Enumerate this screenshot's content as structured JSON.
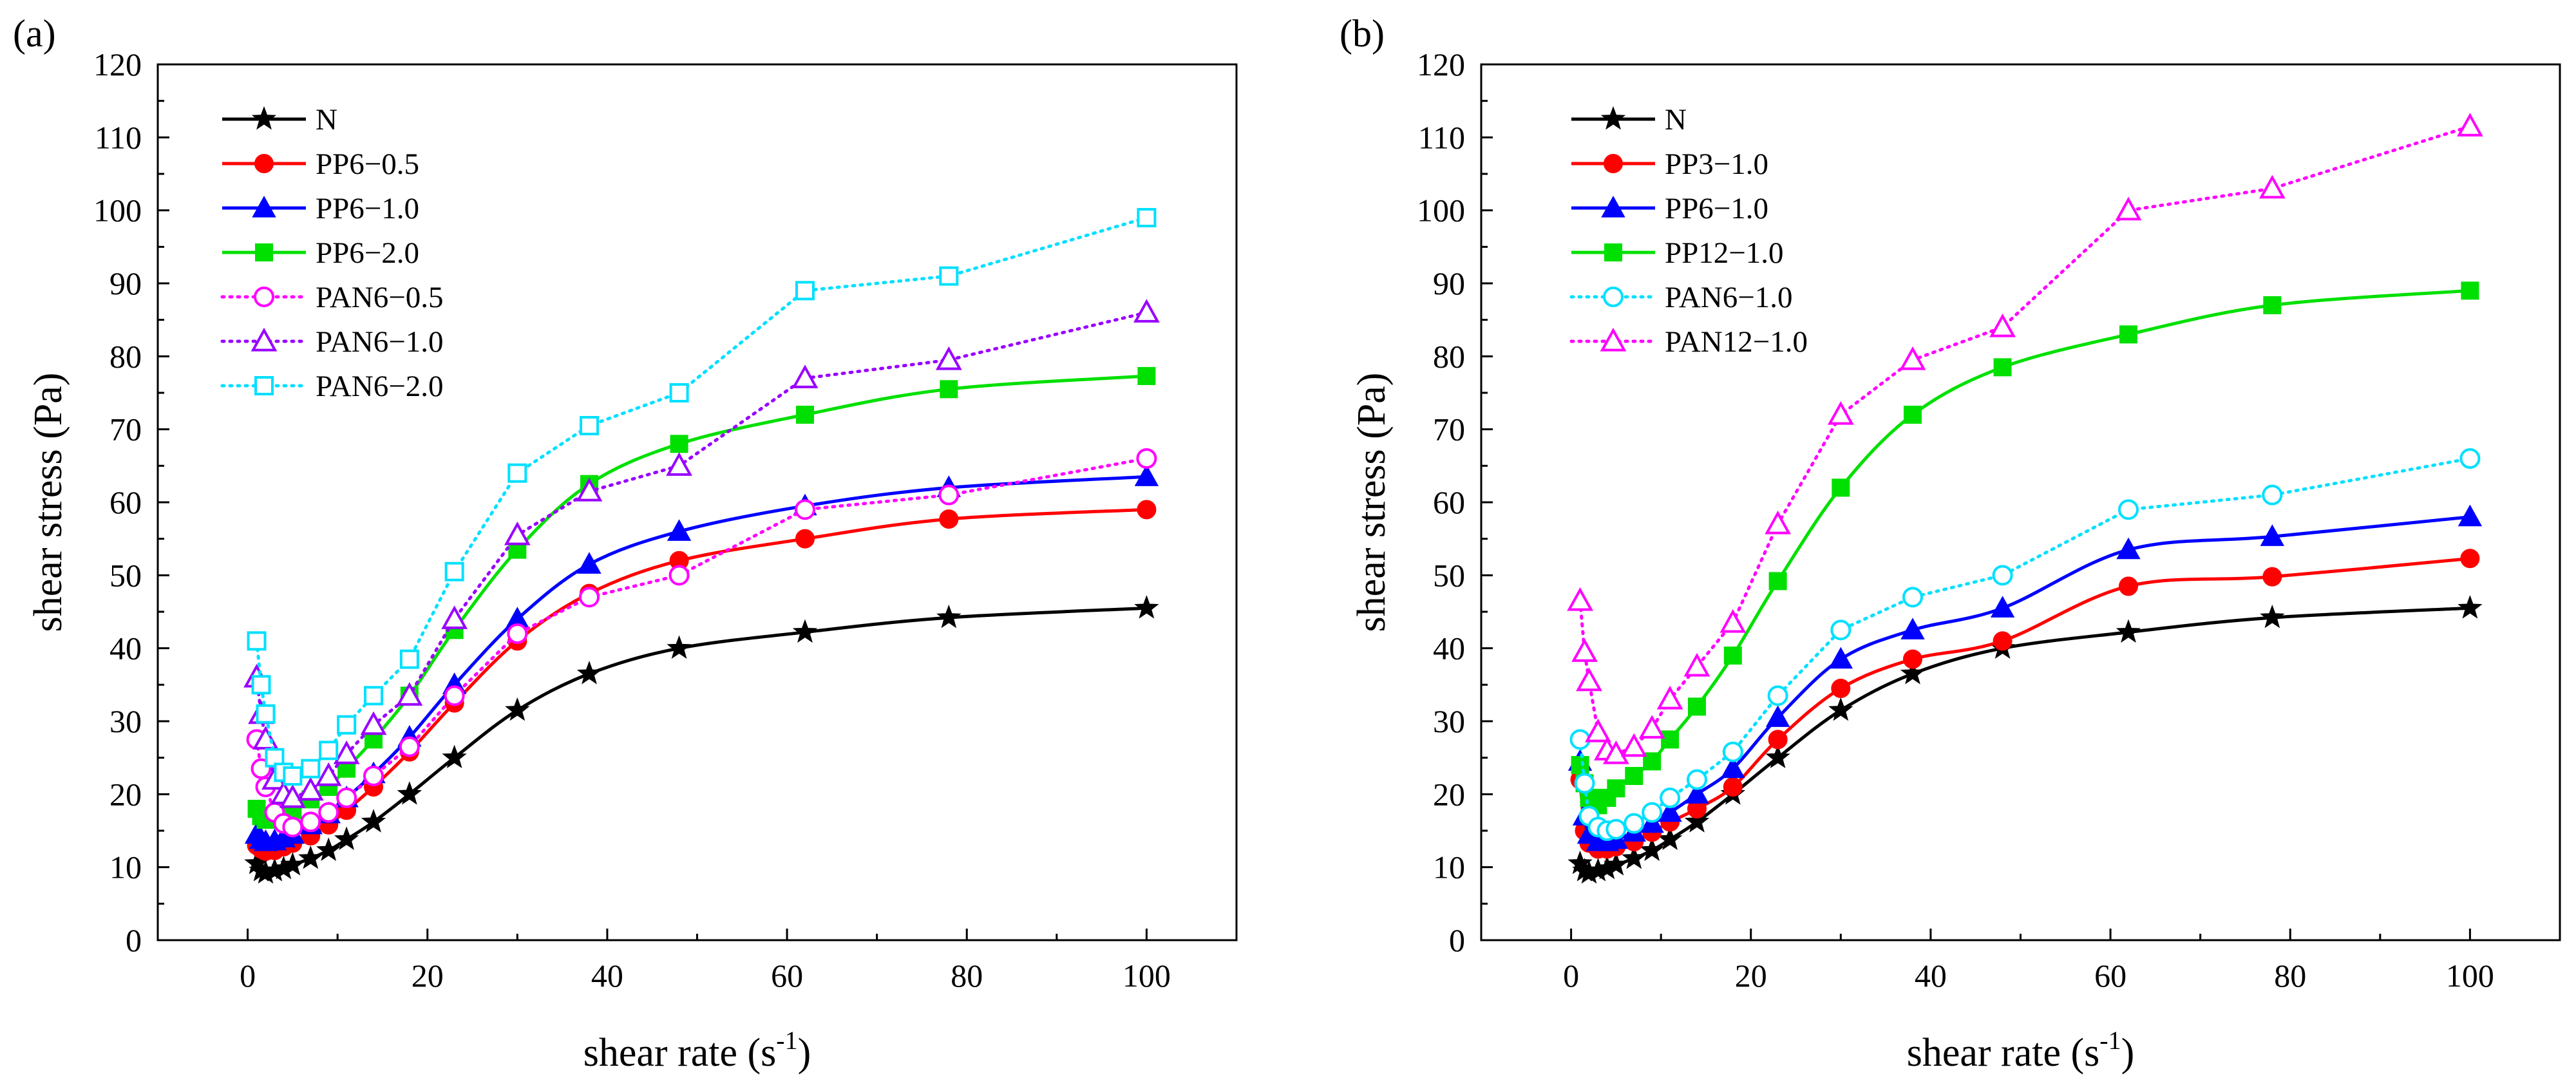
{
  "figure": {
    "description_labels": [
      "(a)",
      "(b)"
    ]
  },
  "chart_data": [
    {
      "type": "line",
      "panel_label": "(a)",
      "xlabel": "shear rate (s",
      "xlabel_sup": "-1",
      "xlabel_close": ")",
      "ylabel": "shear stress (Pa)",
      "xlim": [
        -10,
        110
      ],
      "ylim": [
        0,
        120
      ],
      "xticks": [
        0,
        20,
        40,
        60,
        80,
        100
      ],
      "yticks": [
        0,
        10,
        20,
        30,
        40,
        50,
        60,
        70,
        80,
        90,
        100,
        110,
        120
      ],
      "legend_position": "top-left",
      "series": [
        {
          "name": "N",
          "color": "#000000",
          "marker": "star",
          "filled": true,
          "style": "solid",
          "x": [
            1,
            1.5,
            2,
            3,
            4,
            5,
            7,
            9,
            11,
            14,
            18,
            23,
            30,
            38,
            48,
            62,
            78,
            100
          ],
          "y": [
            10.5,
            9.5,
            9.2,
            9.5,
            9.8,
            10.3,
            11.2,
            12.3,
            13.8,
            16.2,
            20,
            25,
            31.5,
            36.5,
            40,
            42.2,
            44.2,
            45.5
          ]
        },
        {
          "name": "PP6−0.5",
          "color": "#ff0000",
          "marker": "circle",
          "filled": true,
          "style": "solid",
          "x": [
            1,
            1.5,
            2,
            3,
            4,
            5,
            7,
            9,
            11,
            14,
            18,
            23,
            30,
            38,
            48,
            62,
            78,
            100
          ],
          "y": [
            13,
            12.5,
            12.2,
            12.3,
            12.8,
            13.3,
            14.3,
            15.8,
            17.8,
            21,
            25.8,
            32.5,
            41,
            47.5,
            52,
            55,
            57.7,
            59
          ]
        },
        {
          "name": "PP6−1.0",
          "color": "#0000ff",
          "marker": "triangle",
          "filled": true,
          "style": "solid",
          "x": [
            1,
            1.5,
            2,
            3,
            4,
            5,
            7,
            9,
            11,
            14,
            18,
            23,
            30,
            38,
            48,
            62,
            78,
            100
          ],
          "y": [
            14.5,
            13.8,
            13.5,
            13.6,
            14,
            14.5,
            15.8,
            17.3,
            19.5,
            22.8,
            27.8,
            35,
            44,
            51.5,
            56,
            59.5,
            62,
            63.5
          ]
        },
        {
          "name": "PP6−2.0",
          "color": "#00e000",
          "marker": "square",
          "filled": true,
          "style": "solid",
          "x": [
            1,
            1.5,
            2,
            3,
            4,
            5,
            7,
            9,
            11,
            14,
            18,
            23,
            30,
            38,
            48,
            62,
            78,
            100
          ],
          "y": [
            18,
            17,
            16.5,
            16.5,
            17,
            17.8,
            19.3,
            21,
            23.5,
            27.5,
            33.5,
            42.5,
            53.5,
            62.5,
            68,
            72,
            75.5,
            77.3
          ]
        },
        {
          "name": "PAN6−0.5",
          "color": "#ff00ff",
          "marker": "circle",
          "filled": false,
          "style": "dotted",
          "x": [
            1,
            1.5,
            2,
            3,
            4,
            5,
            7,
            9,
            11,
            14,
            18,
            23,
            30,
            38,
            48,
            62,
            78,
            100
          ],
          "y": [
            27.5,
            23.5,
            21,
            17.5,
            16,
            15.5,
            16.2,
            17.5,
            19.5,
            22.5,
            26.5,
            33.5,
            42,
            47,
            50,
            59,
            61,
            66
          ]
        },
        {
          "name": "PAN6−1.0",
          "color": "#9900ff",
          "marker": "triangle",
          "filled": false,
          "style": "dotted",
          "x": [
            1,
            1.5,
            2,
            3,
            4,
            5,
            7,
            9,
            11,
            14,
            18,
            23,
            30,
            38,
            48,
            62,
            78,
            100
          ],
          "y": [
            36,
            31,
            27.5,
            22,
            20,
            19.5,
            20.5,
            22.5,
            25.5,
            29.5,
            33.5,
            44,
            55.5,
            61.5,
            65,
            77,
            79.5,
            86
          ]
        },
        {
          "name": "PAN6−2.0",
          "color": "#00e0ff",
          "marker": "square",
          "filled": false,
          "style": "dotted",
          "x": [
            1,
            1.5,
            2,
            3,
            4,
            5,
            7,
            9,
            11,
            14,
            18,
            23,
            30,
            38,
            48,
            62,
            78,
            100
          ],
          "y": [
            41,
            35,
            31,
            25,
            23,
            22.5,
            23.5,
            26,
            29.5,
            33.5,
            38.5,
            50.5,
            64,
            70.5,
            75,
            89,
            91,
            99
          ]
        }
      ]
    },
    {
      "type": "line",
      "panel_label": "(b)",
      "xlabel": "shear rate (s",
      "xlabel_sup": "-1",
      "xlabel_close": ")",
      "ylabel": "shear stress (Pa)",
      "xlim": [
        -10,
        110
      ],
      "ylim": [
        0,
        120
      ],
      "xticks": [
        0,
        20,
        40,
        60,
        80,
        100
      ],
      "yticks": [
        0,
        10,
        20,
        30,
        40,
        50,
        60,
        70,
        80,
        90,
        100,
        110,
        120
      ],
      "legend_position": "top-left",
      "series": [
        {
          "name": "N",
          "color": "#000000",
          "marker": "star",
          "filled": true,
          "style": "solid",
          "x": [
            1,
            1.5,
            2,
            3,
            4,
            5,
            7,
            9,
            11,
            14,
            18,
            23,
            30,
            38,
            48,
            62,
            78,
            100
          ],
          "y": [
            10.5,
            9.5,
            9.2,
            9.5,
            9.8,
            10.3,
            11.2,
            12.3,
            13.8,
            16.2,
            20,
            25,
            31.5,
            36.5,
            40,
            42.2,
            44.2,
            45.5
          ]
        },
        {
          "name": "PP3−1.0",
          "color": "#ff0000",
          "marker": "circle",
          "filled": true,
          "style": "solid",
          "x": [
            1,
            1.5,
            2,
            3,
            4,
            5,
            7,
            9,
            11,
            14,
            18,
            23,
            30,
            38,
            48,
            62,
            78,
            100
          ],
          "y": [
            22,
            15,
            13.3,
            12.5,
            12.5,
            12.8,
            13.5,
            14.8,
            16.2,
            18,
            21,
            27.5,
            34.5,
            38.5,
            41,
            48.5,
            49.8,
            52.3
          ]
        },
        {
          "name": "PP6−1.0",
          "color": "#0000ff",
          "marker": "triangle",
          "filled": true,
          "style": "solid",
          "x": [
            1,
            1.5,
            2,
            3,
            4,
            5,
            7,
            9,
            11,
            14,
            18,
            23,
            30,
            38,
            48,
            62,
            78,
            100
          ],
          "y": [
            24.5,
            17,
            14.5,
            13.5,
            13.5,
            13.8,
            14.8,
            16,
            17.5,
            20,
            23.5,
            30.5,
            38.5,
            42.5,
            45.5,
            53.5,
            55.3,
            58
          ]
        },
        {
          "name": "PP12−1.0",
          "color": "#00e000",
          "marker": "square",
          "filled": true,
          "style": "solid",
          "x": [
            1,
            1.5,
            2,
            3,
            4,
            5,
            7,
            9,
            11,
            14,
            18,
            23,
            30,
            38,
            48,
            62,
            78,
            100
          ],
          "y": [
            24,
            21.5,
            19.5,
            18.5,
            19.5,
            20.8,
            22.5,
            24.5,
            27.5,
            32,
            39,
            49.2,
            62,
            72,
            78.5,
            83,
            87,
            89
          ]
        },
        {
          "name": "PAN6−1.0",
          "color": "#00e0ff",
          "marker": "circle",
          "filled": false,
          "style": "dotted",
          "x": [
            1,
            1.5,
            2,
            3,
            4,
            5,
            7,
            9,
            11,
            14,
            18,
            23,
            30,
            38,
            48,
            62,
            78,
            100
          ],
          "y": [
            27.5,
            21.5,
            17,
            15.5,
            15,
            15.2,
            16,
            17.5,
            19.5,
            22,
            25.8,
            33.5,
            42.5,
            47,
            50,
            59,
            61,
            66
          ]
        },
        {
          "name": "PAN12−1.0",
          "color": "#ff00ff",
          "marker": "triangle",
          "filled": false,
          "style": "dotted",
          "x": [
            1,
            1.5,
            2,
            3,
            4,
            5,
            7,
            9,
            11,
            14,
            18,
            23,
            30,
            38,
            48,
            62,
            78,
            100
          ],
          "y": [
            46.5,
            39.5,
            35.5,
            28.5,
            26,
            25.5,
            26.5,
            29,
            33,
            37.5,
            43.5,
            57,
            72,
            79.5,
            84,
            100,
            103,
            111.5
          ]
        }
      ]
    }
  ]
}
